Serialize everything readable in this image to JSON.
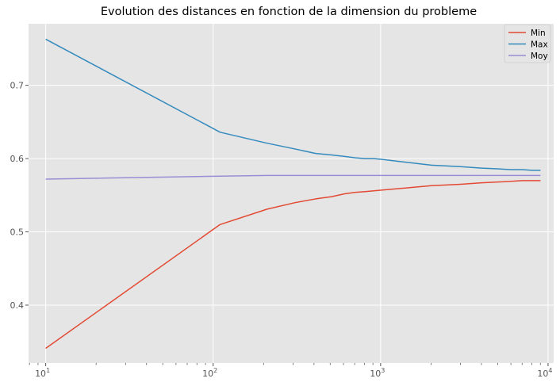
{
  "chart_data": {
    "type": "line",
    "title": "Evolution des distances en fonction de la dimension du probleme",
    "xlabel": "",
    "ylabel": "",
    "x_scale": "log",
    "xlim": [
      7.9,
      10800
    ],
    "ylim": [
      0.321,
      0.784
    ],
    "grid": true,
    "legend_position": "top-right",
    "x_ticks": [
      {
        "value": 10,
        "base": "10",
        "exp": "1"
      },
      {
        "value": 100,
        "base": "10",
        "exp": "2"
      },
      {
        "value": 1000,
        "base": "10",
        "exp": "3"
      },
      {
        "value": 10000,
        "base": "10",
        "exp": "4"
      }
    ],
    "y_ticks": [
      {
        "value": 0.4,
        "label": "0.4"
      },
      {
        "value": 0.5,
        "label": "0.5"
      },
      {
        "value": 0.6,
        "label": "0.6"
      },
      {
        "value": 0.7,
        "label": "0.7"
      }
    ],
    "x": [
      10,
      110,
      210,
      310,
      410,
      510,
      610,
      710,
      810,
      910,
      1010,
      2010,
      3010,
      4010,
      5010,
      6010,
      7010,
      8010,
      9010
    ],
    "series": [
      {
        "name": "Min",
        "color": "#E24A33",
        "values": [
          0.341,
          0.51,
          0.531,
          0.54,
          0.545,
          0.548,
          0.552,
          0.554,
          0.555,
          0.556,
          0.557,
          0.563,
          0.565,
          0.567,
          0.568,
          0.569,
          0.57,
          0.57,
          0.57
        ]
      },
      {
        "name": "Max",
        "color": "#348ABD",
        "values": [
          0.763,
          0.636,
          0.621,
          0.613,
          0.607,
          0.605,
          0.603,
          0.601,
          0.6,
          0.6,
          0.599,
          0.591,
          0.589,
          0.587,
          0.586,
          0.585,
          0.585,
          0.584,
          0.584
        ]
      },
      {
        "name": "Moy",
        "color": "#988ED5",
        "values": [
          0.572,
          0.576,
          0.577,
          0.577,
          0.577,
          0.577,
          0.577,
          0.577,
          0.577,
          0.577,
          0.577,
          0.577,
          0.577,
          0.577,
          0.577,
          0.577,
          0.577,
          0.577,
          0.577
        ]
      }
    ]
  }
}
